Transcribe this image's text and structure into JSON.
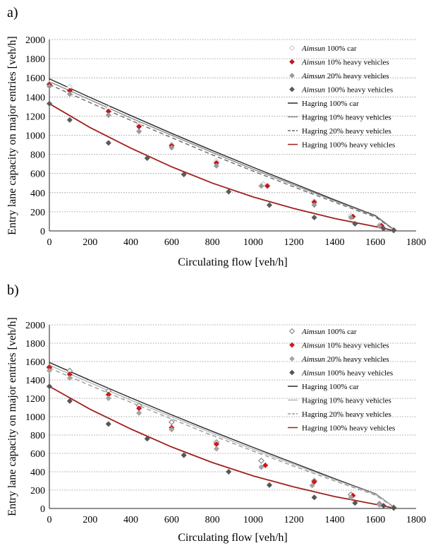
{
  "chart_data": [
    {
      "type": "scatter",
      "panel_label": "a)",
      "xlabel": "Circulating flow [veh/h]",
      "ylabel": "Entry lane capacity on major entries [veh/h]",
      "xlim": [
        0,
        1800
      ],
      "ylim": [
        0,
        2000
      ],
      "xticks": [
        "0",
        "200",
        "400",
        "600",
        "800",
        "1000",
        "1200",
        "1400",
        "1600",
        "1800"
      ],
      "yticks": [
        "0",
        "200",
        "400",
        "600",
        "800",
        "1000",
        "1200",
        "1400",
        "1600",
        "1800",
        "2000"
      ],
      "grid": "horizontal dotted",
      "legend_position": "top-right",
      "scatter_series": [
        {
          "key": "aimsun_car",
          "prefix": "Aimsun",
          "suffix": " 100% car",
          "color": "#d0d0d0",
          "marker": "diamond-open",
          "points": [
            [
              0,
              1540
            ],
            [
              100,
              1505
            ],
            [
              290,
              1280
            ],
            [
              440,
              1110
            ],
            [
              600,
              900
            ],
            [
              820,
              730
            ],
            [
              1050,
              490
            ],
            [
              1300,
              310
            ],
            [
              1480,
              160
            ],
            [
              1620,
              60
            ],
            [
              1690,
              10
            ]
          ]
        },
        {
          "key": "aimsun_10",
          "prefix": "Aimsun",
          "suffix": " 10% heavy vehicles",
          "color": "#c0181c",
          "marker": "diamond",
          "points": [
            [
              0,
              1530
            ],
            [
              100,
              1465
            ],
            [
              290,
              1250
            ],
            [
              440,
              1090
            ],
            [
              600,
              890
            ],
            [
              820,
              710
            ],
            [
              1070,
              470
            ],
            [
              1300,
              300
            ],
            [
              1490,
              150
            ],
            [
              1630,
              55
            ],
            [
              1690,
              10
            ]
          ]
        },
        {
          "key": "aimsun_20",
          "prefix": "Aimsun",
          "suffix": " 20% heavy vehicles",
          "color": "#9a9a9a",
          "marker": "diamond",
          "points": [
            [
              0,
              1510
            ],
            [
              100,
              1430
            ],
            [
              290,
              1210
            ],
            [
              440,
              1040
            ],
            [
              600,
              870
            ],
            [
              820,
              680
            ],
            [
              1040,
              470
            ],
            [
              1300,
              270
            ],
            [
              1480,
              140
            ],
            [
              1620,
              50
            ],
            [
              1690,
              10
            ]
          ]
        },
        {
          "key": "aimsun_100",
          "prefix": "Aimsun",
          "suffix": " 100% heavy vehicles",
          "color": "#5a5a5a",
          "marker": "diamond",
          "points": [
            [
              0,
              1330
            ],
            [
              100,
              1160
            ],
            [
              290,
              920
            ],
            [
              480,
              760
            ],
            [
              660,
              590
            ],
            [
              880,
              410
            ],
            [
              1080,
              270
            ],
            [
              1300,
              140
            ],
            [
              1500,
              75
            ],
            [
              1640,
              25
            ],
            [
              1690,
              5
            ]
          ]
        }
      ],
      "line_series": [
        {
          "key": "hag_car",
          "label": "Hagring 100% car",
          "color": "#2a2a2a",
          "dash": "",
          "points": [
            [
              0,
              1590
            ],
            [
              200,
              1395
            ],
            [
              400,
              1205
            ],
            [
              600,
              1020
            ],
            [
              800,
              840
            ],
            [
              1000,
              665
            ],
            [
              1200,
              495
            ],
            [
              1400,
              325
            ],
            [
              1600,
              160
            ],
            [
              1700,
              0
            ]
          ]
        },
        {
          "key": "hag_10",
          "label": "Hagring 10% heavy vehicles",
          "color": "#8c8c8c",
          "dash": "",
          "points": [
            [
              0,
              1560
            ],
            [
              200,
              1370
            ],
            [
              400,
              1180
            ],
            [
              600,
              1000
            ],
            [
              800,
              820
            ],
            [
              1000,
              645
            ],
            [
              1200,
              480
            ],
            [
              1400,
              315
            ],
            [
              1600,
              155
            ],
            [
              1700,
              0
            ]
          ]
        },
        {
          "key": "hag_20",
          "label": "Hagring 20% heavy vehicles",
          "color": "#6a6a6a",
          "dash": "6,4",
          "points": [
            [
              0,
              1530
            ],
            [
              200,
              1340
            ],
            [
              400,
              1155
            ],
            [
              600,
              975
            ],
            [
              800,
              795
            ],
            [
              1000,
              625
            ],
            [
              1200,
              460
            ],
            [
              1400,
              300
            ],
            [
              1600,
              145
            ],
            [
              1700,
              0
            ]
          ]
        },
        {
          "key": "hag_100",
          "label": "Hagring 100% heavy vehicles",
          "color": "#a0201c",
          "dash": "",
          "points": [
            [
              0,
              1330
            ],
            [
              200,
              1080
            ],
            [
              400,
              865
            ],
            [
              600,
              670
            ],
            [
              800,
              500
            ],
            [
              1000,
              355
            ],
            [
              1200,
              235
            ],
            [
              1400,
              130
            ],
            [
              1600,
              45
            ],
            [
              1700,
              0
            ]
          ]
        }
      ]
    },
    {
      "type": "scatter",
      "panel_label": "b)",
      "xlabel": "Circulating flow [veh/h]",
      "ylabel": "Entry lane capacity on major entries [veh/h]",
      "xlim": [
        0,
        1800
      ],
      "ylim": [
        0,
        2000
      ],
      "xticks": [
        "0",
        "200",
        "400",
        "600",
        "800",
        "1000",
        "1200",
        "1400",
        "1600",
        "1800"
      ],
      "yticks": [
        "0",
        "200",
        "400",
        "600",
        "800",
        "1000",
        "1200",
        "1400",
        "1600",
        "1800",
        "2000"
      ],
      "grid": "horizontal dotted",
      "legend_position": "top-right",
      "scatter_series": [
        {
          "key": "aimsun_car",
          "prefix": "Aimsun",
          "suffix": " 100% car",
          "color": "#8a8a8a",
          "marker": "diamond-open",
          "points": [
            [
              0,
              1540
            ],
            [
              100,
              1500
            ],
            [
              290,
              1280
            ],
            [
              440,
              1120
            ],
            [
              600,
              940
            ],
            [
              820,
              720
            ],
            [
              1040,
              520
            ],
            [
              1300,
              300
            ],
            [
              1480,
              150
            ],
            [
              1620,
              50
            ],
            [
              1690,
              10
            ]
          ]
        },
        {
          "key": "aimsun_10",
          "prefix": "Aimsun",
          "suffix": " 10% heavy vehicles",
          "color": "#d0181c",
          "marker": "diamond",
          "points": [
            [
              0,
              1535
            ],
            [
              100,
              1460
            ],
            [
              290,
              1240
            ],
            [
              440,
              1090
            ],
            [
              600,
              880
            ],
            [
              820,
              700
            ],
            [
              1060,
              470
            ],
            [
              1300,
              290
            ],
            [
              1490,
              140
            ],
            [
              1620,
              40
            ],
            [
              1690,
              10
            ]
          ]
        },
        {
          "key": "aimsun_20",
          "prefix": "Aimsun",
          "suffix": " 20% heavy vehicles",
          "color": "#a5a5a5",
          "marker": "diamond",
          "points": [
            [
              0,
              1500
            ],
            [
              100,
              1420
            ],
            [
              290,
              1200
            ],
            [
              440,
              1040
            ],
            [
              600,
              860
            ],
            [
              820,
              650
            ],
            [
              1040,
              450
            ],
            [
              1290,
              250
            ],
            [
              1480,
              120
            ],
            [
              1620,
              40
            ],
            [
              1690,
              10
            ]
          ]
        },
        {
          "key": "aimsun_100",
          "prefix": "Aimsun",
          "suffix": " 100% heavy vehicles",
          "color": "#555555",
          "marker": "diamond",
          "points": [
            [
              0,
              1330
            ],
            [
              100,
              1170
            ],
            [
              290,
              920
            ],
            [
              480,
              760
            ],
            [
              660,
              580
            ],
            [
              880,
              400
            ],
            [
              1080,
              255
            ],
            [
              1300,
              120
            ],
            [
              1500,
              60
            ],
            [
              1640,
              30
            ],
            [
              1690,
              5
            ]
          ]
        }
      ],
      "line_series": [
        {
          "key": "hag_car",
          "label": "Hagring 100% car",
          "color": "#2a2a2a",
          "dash": "",
          "points": [
            [
              0,
              1590
            ],
            [
              200,
              1395
            ],
            [
              400,
              1205
            ],
            [
              600,
              1020
            ],
            [
              800,
              840
            ],
            [
              1000,
              665
            ],
            [
              1200,
              495
            ],
            [
              1400,
              325
            ],
            [
              1600,
              160
            ],
            [
              1700,
              0
            ]
          ]
        },
        {
          "key": "hag_10",
          "label": "Hagring 10% heavy vehicles",
          "color": "#b5b5b5",
          "dash": "",
          "points": [
            [
              0,
              1560
            ],
            [
              200,
              1370
            ],
            [
              400,
              1180
            ],
            [
              600,
              1000
            ],
            [
              800,
              820
            ],
            [
              1000,
              645
            ],
            [
              1200,
              480
            ],
            [
              1400,
              315
            ],
            [
              1600,
              155
            ],
            [
              1700,
              0
            ]
          ]
        },
        {
          "key": "hag_20",
          "label": "Hagring 20% heavy vehicles",
          "color": "#9a9a9a",
          "dash": "6,4",
          "points": [
            [
              0,
              1530
            ],
            [
              200,
              1340
            ],
            [
              400,
              1155
            ],
            [
              600,
              975
            ],
            [
              800,
              795
            ],
            [
              1000,
              625
            ],
            [
              1200,
              460
            ],
            [
              1400,
              300
            ],
            [
              1600,
              145
            ],
            [
              1700,
              0
            ]
          ]
        },
        {
          "key": "hag_100",
          "label": "Hagring 100% heavy vehicles",
          "color": "#a0201c",
          "dash": "",
          "points": [
            [
              0,
              1330
            ],
            [
              200,
              1080
            ],
            [
              400,
              865
            ],
            [
              600,
              670
            ],
            [
              800,
              500
            ],
            [
              1000,
              355
            ],
            [
              1200,
              235
            ],
            [
              1400,
              130
            ],
            [
              1600,
              45
            ],
            [
              1700,
              0
            ]
          ]
        }
      ]
    }
  ]
}
